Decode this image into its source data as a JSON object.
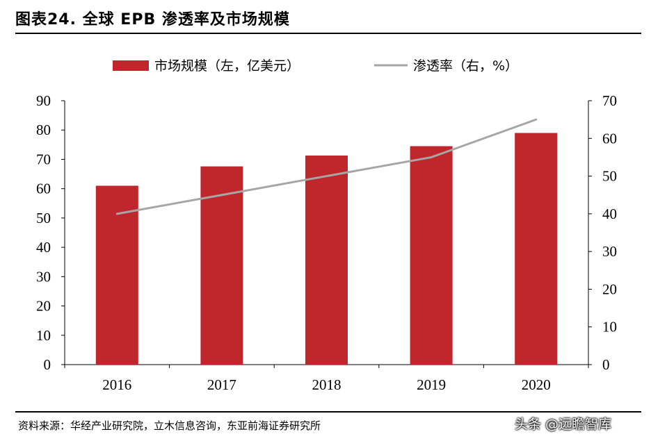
{
  "figure": {
    "title": "图表24. 全球 EPB 渗透率及市场规模",
    "source": "资料来源：华经产业研究院，立木信息咨询，东亚前海证券研究所",
    "watermark": "头条 @远瞻智库"
  },
  "chart_data": {
    "type": "bar",
    "categories": [
      "2016",
      "2017",
      "2018",
      "2019",
      "2020"
    ],
    "series": [
      {
        "name": "市场规模（左，亿美元）",
        "type": "bar",
        "axis": "left",
        "color": "#c0272d",
        "values": [
          61,
          67.6,
          71.3,
          74.5,
          79
        ]
      },
      {
        "name": "渗透率（右，%）",
        "type": "line",
        "axis": "right",
        "color": "#a6a6a6",
        "values": [
          40,
          45,
          50,
          55,
          65
        ]
      }
    ],
    "y_left": {
      "min": 0,
      "max": 90,
      "step": 10,
      "ticks": [
        "0",
        "10",
        "20",
        "30",
        "40",
        "50",
        "60",
        "70",
        "80",
        "90"
      ]
    },
    "y_right": {
      "min": 0,
      "max": 70,
      "step": 10,
      "ticks": [
        "0",
        "10",
        "20",
        "30",
        "40",
        "50",
        "60",
        "70"
      ]
    },
    "legend": "top-center",
    "grid": false
  }
}
